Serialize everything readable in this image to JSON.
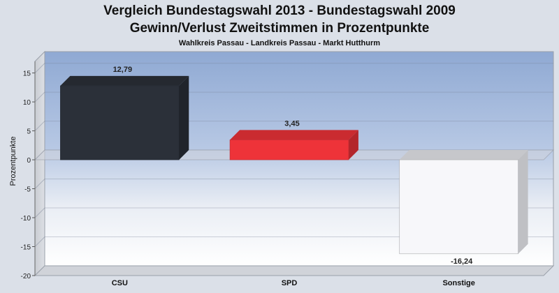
{
  "chart_data": {
    "type": "bar",
    "title": "Vergleich Bundestagswahl 2013 - Bundestagswahl 2009",
    "title_line2": "Gewinn/Verlust Zweitstimmen in Prozentpunkte",
    "subtitle": "Wahlkreis Passau - Landkreis Passau - Markt Hutthurm",
    "ylabel": "Prozentpunkte",
    "xlabel": "",
    "categories": [
      "CSU",
      "SPD",
      "Sonstige"
    ],
    "values": [
      12.79,
      3.45,
      -16.24
    ],
    "value_labels": [
      "12,79",
      "3,45",
      "-16,24"
    ],
    "colors": [
      "#2b3039",
      "#ee3339",
      "#f7f7fa"
    ],
    "ylim": [
      -20,
      17
    ],
    "yticks": [
      15,
      10,
      5,
      0,
      -5,
      -10,
      -15,
      -20
    ],
    "grid": true,
    "legend": "none"
  }
}
